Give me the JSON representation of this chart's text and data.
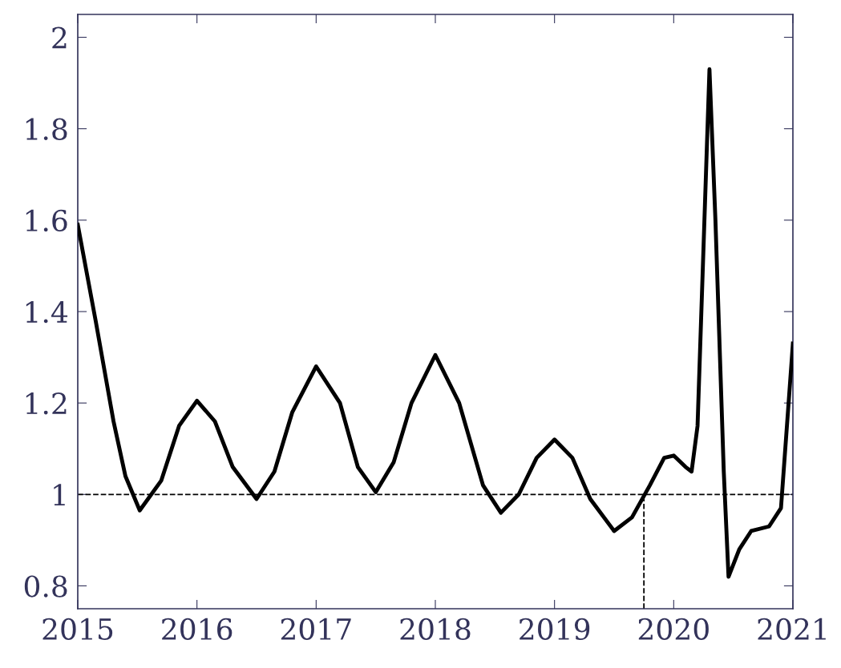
{
  "chart_data": {
    "type": "line",
    "series": [
      {
        "color": "#000000",
        "x": [
          2015.0,
          2015.15,
          2015.3,
          2015.4,
          2015.52,
          2015.7,
          2015.85,
          2016.0,
          2016.15,
          2016.3,
          2016.5,
          2016.65,
          2016.8,
          2017.0,
          2017.2,
          2017.35,
          2017.5,
          2017.65,
          2017.8,
          2018.0,
          2018.2,
          2018.4,
          2018.55,
          2018.7,
          2018.85,
          2019.0,
          2019.15,
          2019.3,
          2019.5,
          2019.65,
          2019.8,
          2019.92,
          2020.0,
          2020.1,
          2020.15,
          2020.2,
          2020.3,
          2020.35,
          2020.42,
          2020.46,
          2020.55,
          2020.65,
          2020.8,
          2020.9,
          2021.0
        ],
        "values": [
          1.59,
          1.38,
          1.16,
          1.04,
          0.965,
          1.03,
          1.15,
          1.205,
          1.16,
          1.06,
          0.99,
          1.05,
          1.18,
          1.28,
          1.2,
          1.06,
          1.005,
          1.07,
          1.2,
          1.305,
          1.2,
          1.02,
          0.96,
          1.0,
          1.08,
          1.12,
          1.08,
          0.99,
          0.92,
          0.95,
          1.02,
          1.08,
          1.085,
          1.06,
          1.05,
          1.15,
          1.93,
          1.6,
          1.05,
          0.82,
          0.88,
          0.92,
          0.93,
          0.97,
          1.33
        ]
      }
    ],
    "xlim": [
      2015,
      2021
    ],
    "xticks": [
      2015,
      2016,
      2017,
      2018,
      2019,
      2020,
      2021
    ],
    "ylim": [
      0.75,
      2.05
    ],
    "yticks": [
      0.8,
      1,
      1.2,
      1.4,
      1.6,
      1.8,
      2
    ],
    "ref_lines": [
      {
        "axis": "y",
        "value": 1,
        "line_style": "dashed",
        "color": "#000000"
      },
      {
        "axis": "x",
        "value": 2019.75,
        "line_style": "dashed",
        "color": "#000000"
      }
    ],
    "grid": false,
    "legend": false,
    "marker": "none",
    "line_style": "solid"
  }
}
